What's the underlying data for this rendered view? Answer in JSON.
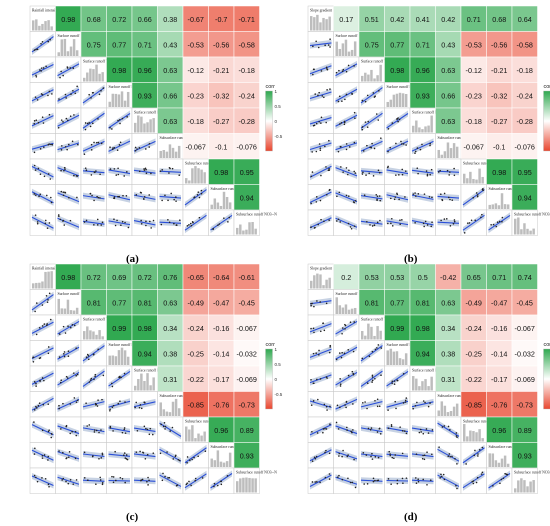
{
  "figure": {
    "panel_labels": [
      "(a)",
      "(b)",
      "(c)",
      "(d)"
    ]
  },
  "colors": {
    "high": "#2fa84f",
    "mid": "#ffffff",
    "low": "#e8462f",
    "fit_line": "#2a4fd8",
    "ci_band": "#b9c7dc",
    "hist": "#bdbdbd",
    "strip": "#e6e6e6",
    "grid_line": "#9a9a9a"
  },
  "chart_data": [
    {
      "type": "heatmap",
      "panel": "(a)",
      "variables": [
        "Rainfall intensity",
        "Surface runoff",
        "Surface runoff TN",
        "Surface runoff NH4+-N",
        "Surface runoff NO3--N",
        "Subsurface runoff",
        "Subsurface runoff TN",
        "Subsurface runoff NH4+-N",
        "Subsurface runoff NO3--N"
      ],
      "correlations": [
        [
          0.98,
          0.68,
          0.72,
          0.66,
          0.38,
          -0.67,
          -0.7,
          -0.71
        ],
        [
          0.75,
          0.77,
          0.71,
          0.43,
          -0.53,
          -0.56,
          -0.58
        ],
        [
          0.98,
          0.96,
          0.63,
          -0.12,
          -0.21,
          -0.18
        ],
        [
          0.93,
          0.66,
          -0.23,
          -0.32,
          -0.24
        ],
        [
          0.63,
          -0.18,
          -0.27,
          -0.28
        ],
        [
          -0.067,
          -0.1,
          -0.076
        ],
        [
          0.98,
          0.95
        ],
        [
          0.94
        ]
      ],
      "legend": {
        "title": "corr",
        "ticks": [
          1,
          0.5,
          0,
          -0.5
        ]
      }
    },
    {
      "type": "heatmap",
      "panel": "(b)",
      "variables": [
        "Slope gradient",
        "Surface runoff",
        "Surface runoff TN",
        "Surface runoff NH4+-N",
        "Surface runoff NO3--N",
        "Subsurface runoff",
        "Subsurface runoff TN",
        "Subsurface runoff NH4+-N",
        "Subsurface runoff NO3--N"
      ],
      "correlations": [
        [
          0.17,
          0.51,
          0.42,
          0.41,
          0.42,
          0.71,
          0.68,
          0.64
        ],
        [
          0.75,
          0.77,
          0.71,
          0.43,
          -0.53,
          -0.56,
          -0.58
        ],
        [
          0.98,
          0.96,
          0.63,
          -0.12,
          -0.21,
          -0.18
        ],
        [
          0.93,
          0.66,
          -0.23,
          -0.32,
          -0.24
        ],
        [
          0.63,
          -0.18,
          -0.27,
          -0.28
        ],
        [
          -0.067,
          -0.1,
          -0.076
        ],
        [
          0.98,
          0.95
        ],
        [
          0.94
        ]
      ],
      "legend": {
        "title": "corr",
        "ticks": [
          1,
          0.5,
          0,
          -0.5
        ]
      }
    },
    {
      "type": "heatmap",
      "panel": "(c)",
      "variables": [
        "Rainfall intensity",
        "Surface runoff",
        "Surface runoff TN",
        "Surface runoff NH4+-N",
        "Surface runoff NO3--N",
        "Subsurface runoff",
        "Subsurface runoff TN",
        "Subsurface runoff NH4+-N",
        "Subsurface runoff NO3--N"
      ],
      "correlations": [
        [
          0.98,
          0.72,
          0.69,
          0.72,
          0.76,
          -0.65,
          -0.64,
          -0.61
        ],
        [
          0.81,
          0.77,
          0.81,
          0.63,
          -0.49,
          -0.47,
          -0.45
        ],
        [
          0.99,
          0.98,
          0.34,
          -0.24,
          -0.16,
          -0.067
        ],
        [
          0.94,
          0.38,
          -0.25,
          -0.14,
          -0.032
        ],
        [
          0.31,
          -0.22,
          -0.17,
          -0.069
        ],
        [
          -0.85,
          -0.76,
          -0.73
        ],
        [
          0.96,
          0.89
        ],
        [
          0.93
        ]
      ],
      "legend": {
        "title": "corr",
        "ticks": [
          1,
          0.5,
          0,
          -0.5
        ]
      }
    },
    {
      "type": "heatmap",
      "panel": "(d)",
      "variables": [
        "Slope gradient",
        "Surface runoff",
        "Surface runoff TN",
        "Surface runoff NH4+-N",
        "Surface runoff NO3--N",
        "Subsurface runoff",
        "Subsurface runoff TN",
        "Subsurface runoff NH4+-N",
        "Subsurface runoff NO3--N"
      ],
      "correlations": [
        [
          0.2,
          0.53,
          0.53,
          0.5,
          -0.42,
          0.65,
          0.71,
          0.74
        ],
        [
          0.81,
          0.77,
          0.81,
          0.63,
          -0.49,
          -0.47,
          -0.45
        ],
        [
          0.99,
          0.98,
          0.34,
          -0.24,
          -0.16,
          -0.067
        ],
        [
          0.94,
          0.38,
          -0.25,
          -0.14,
          -0.032
        ],
        [
          0.31,
          -0.22,
          -0.17,
          -0.069
        ],
        [
          -0.85,
          -0.76,
          -0.73
        ],
        [
          0.96,
          0.89
        ],
        [
          0.93
        ]
      ],
      "legend": {
        "title": "corr",
        "ticks": [
          1,
          0.5,
          0,
          -0.5
        ]
      }
    }
  ]
}
